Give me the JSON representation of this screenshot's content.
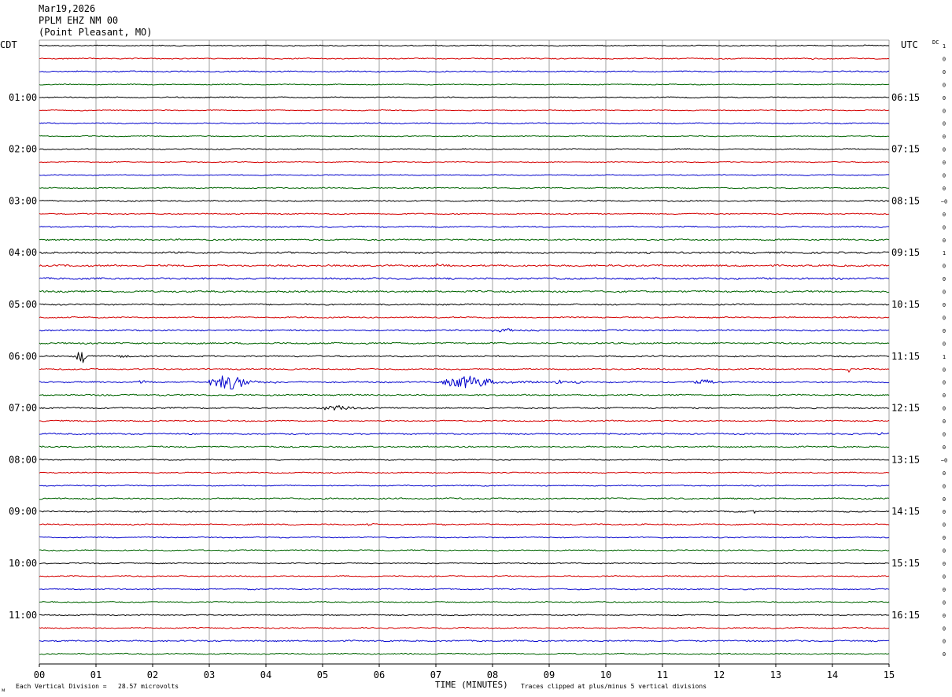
{
  "header": {
    "date": "Mar19,2026",
    "station": "PPLM EHZ NM 00",
    "location": "(Point Pleasant, MO)"
  },
  "left_axis_title": "CDT",
  "right_axis_title": "UTC",
  "dc_title": "DC",
  "footer": {
    "scale_note": "Each Vertical Division =   28.57 microvolts",
    "xlabel": "TIME (MINUTES)",
    "clip_note": "Traces clipped at plus/minus 5 vertical divisions",
    "corner_mark": "ᴍ"
  },
  "colors": {
    "trace_cycle": [
      "#000000",
      "#d40000",
      "#0000cc",
      "#006400"
    ],
    "grid": "#888888",
    "text": "#000000"
  },
  "chart_data": {
    "type": "line",
    "title": "PPLM EHZ NM 00",
    "xlabel": "TIME (MINUTES)",
    "xlim": [
      0,
      15
    ],
    "x_ticks": [
      "00",
      "01",
      "02",
      "03",
      "04",
      "05",
      "06",
      "07",
      "08",
      "09",
      "10",
      "11",
      "12",
      "13",
      "14",
      "15"
    ],
    "trace_count": 48,
    "minutes_per_trace": 15,
    "left_hour_labels": [
      {
        "trace": 4,
        "label": "01:00"
      },
      {
        "trace": 8,
        "label": "02:00"
      },
      {
        "trace": 12,
        "label": "03:00"
      },
      {
        "trace": 16,
        "label": "04:00"
      },
      {
        "trace": 20,
        "label": "05:00"
      },
      {
        "trace": 24,
        "label": "06:00"
      },
      {
        "trace": 28,
        "label": "07:00"
      },
      {
        "trace": 32,
        "label": "08:00"
      },
      {
        "trace": 36,
        "label": "09:00"
      },
      {
        "trace": 40,
        "label": "10:00"
      },
      {
        "trace": 44,
        "label": "11:00"
      }
    ],
    "right_hour_labels": [
      {
        "trace": 4,
        "label": "06:15"
      },
      {
        "trace": 8,
        "label": "07:15"
      },
      {
        "trace": 12,
        "label": "08:15"
      },
      {
        "trace": 16,
        "label": "09:15"
      },
      {
        "trace": 20,
        "label": "10:15"
      },
      {
        "trace": 24,
        "label": "11:15"
      },
      {
        "trace": 28,
        "label": "12:15"
      },
      {
        "trace": 32,
        "label": "13:15"
      },
      {
        "trace": 36,
        "label": "14:15"
      },
      {
        "trace": 40,
        "label": "15:15"
      },
      {
        "trace": 44,
        "label": "16:15"
      }
    ],
    "dc_offsets": [
      "1",
      "0",
      "0",
      "0",
      "0",
      "0",
      "0",
      "0",
      "0",
      "0",
      "0",
      "0",
      "−0",
      "0",
      "0",
      "0",
      "1",
      "0",
      "0",
      "0",
      "0",
      "0",
      "0",
      "0",
      "1",
      "0",
      "0",
      "0",
      "0",
      "0",
      "0",
      "0",
      "−0",
      "0",
      "0",
      "0",
      "0",
      "0",
      "0",
      "0",
      "0",
      "0",
      "0",
      "0",
      "0",
      "0",
      "0",
      "0"
    ],
    "trace_noise": [
      0.6,
      0.6,
      0.7,
      0.5,
      0.6,
      0.5,
      0.6,
      0.5,
      0.6,
      0.5,
      0.5,
      0.6,
      0.7,
      0.6,
      0.7,
      0.8,
      1.0,
      1.0,
      1.0,
      1.0,
      0.8,
      0.7,
      0.8,
      0.9,
      0.8,
      0.7,
      0.8,
      0.8,
      0.8,
      0.7,
      0.8,
      0.8,
      0.6,
      0.6,
      0.6,
      0.8,
      0.7,
      0.7,
      0.6,
      0.6,
      0.6,
      0.6,
      0.7,
      0.6,
      0.6,
      0.6,
      0.8,
      0.6
    ],
    "events": [
      {
        "trace": 1,
        "start": 13.55,
        "end": 13.9,
        "amp": 1.2
      },
      {
        "trace": 5,
        "start": 13.65,
        "end": 14.1,
        "amp": 1.5
      },
      {
        "trace": 17,
        "start": 6.9,
        "end": 7.3,
        "amp": 1.4
      },
      {
        "trace": 22,
        "start": 8.0,
        "end": 8.7,
        "amp": 3.0
      },
      {
        "trace": 24,
        "start": 0.65,
        "end": 0.95,
        "amp": 9.0
      },
      {
        "trace": 24,
        "start": 1.4,
        "end": 1.85,
        "amp": 2.0
      },
      {
        "trace": 25,
        "start": 14.25,
        "end": 14.35,
        "amp": 5.0
      },
      {
        "trace": 26,
        "start": 1.75,
        "end": 1.95,
        "amp": 3.0
      },
      {
        "trace": 26,
        "start": 3.0,
        "end": 4.2,
        "amp": 9.0
      },
      {
        "trace": 26,
        "start": 7.1,
        "end": 8.8,
        "amp": 7.5
      },
      {
        "trace": 26,
        "start": 9.05,
        "end": 9.5,
        "amp": 2.5
      },
      {
        "trace": 26,
        "start": 9.45,
        "end": 9.7,
        "amp": 3.0
      },
      {
        "trace": 26,
        "start": 11.55,
        "end": 12.25,
        "amp": 3.5
      },
      {
        "trace": 28,
        "start": 5.0,
        "end": 6.0,
        "amp": 3.5
      },
      {
        "trace": 30,
        "start": 14.8,
        "end": 15.0,
        "amp": 2.0
      },
      {
        "trace": 36,
        "start": 12.5,
        "end": 12.8,
        "amp": 2.2
      },
      {
        "trace": 37,
        "start": 7.1,
        "end": 7.3,
        "amp": 2.0
      },
      {
        "trace": 37,
        "start": 5.75,
        "end": 5.95,
        "amp": 2.0
      }
    ]
  }
}
